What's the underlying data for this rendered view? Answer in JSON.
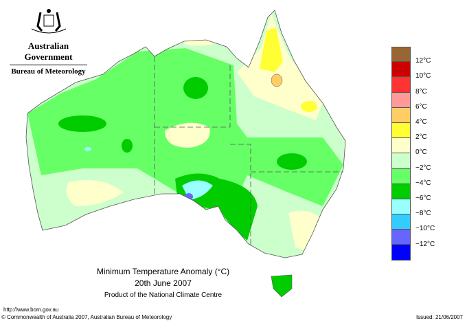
{
  "logo": {
    "org": "Australian Government",
    "bureau": "Bureau of Meteorology"
  },
  "legend": {
    "colors": [
      "#996633",
      "#cc0000",
      "#ff3333",
      "#ff9999",
      "#ffcc66",
      "#ffff33",
      "#ffffcc",
      "#ccffcc",
      "#66ff66",
      "#00cc00",
      "#99ffff",
      "#33ccff",
      "#6666ff",
      "#0000ff"
    ],
    "labels": [
      "12°C",
      "10°C",
      "8°C",
      "6°C",
      "4°C",
      "2°C",
      "0°C",
      "−2°C",
      "−4°C",
      "−6°C",
      "−8°C",
      "−10°C",
      "−12°C"
    ]
  },
  "title": {
    "line1": "Minimum Temperature Anomaly (°C)",
    "line2": "20th June 2007",
    "line3": "Product of the National Climate Centre"
  },
  "footer": {
    "url": "http://www.bom.gov.au",
    "copyright": "© Commonwealth of Australia 2007, Australian Bureau of Meteorology",
    "issued": "Issued: 21/06/2007"
  }
}
